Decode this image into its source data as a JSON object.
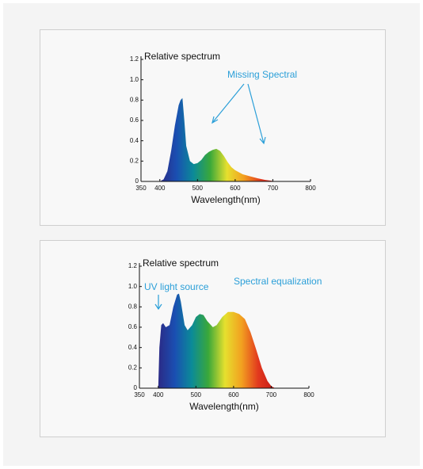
{
  "chart_data": [
    {
      "type": "area",
      "y_label": "Relative spectrum",
      "x_label": "Wavelength(nm)",
      "annotations": [
        "Missing Spectral"
      ],
      "x": [
        400,
        410,
        420,
        430,
        440,
        450,
        455,
        460,
        465,
        470,
        480,
        490,
        500,
        510,
        520,
        530,
        540,
        550,
        560,
        570,
        580,
        590,
        600,
        620,
        640,
        660,
        680,
        700,
        712
      ],
      "values": [
        0,
        0.02,
        0.1,
        0.3,
        0.55,
        0.75,
        0.8,
        0.82,
        0.6,
        0.35,
        0.2,
        0.17,
        0.18,
        0.21,
        0.26,
        0.29,
        0.31,
        0.32,
        0.3,
        0.25,
        0.19,
        0.14,
        0.11,
        0.07,
        0.05,
        0.03,
        0.015,
        0.005,
        0
      ],
      "color_stops": [
        "#2b2a86",
        "#1a4fb2",
        "#0b8a98",
        "#3aa83a",
        "#e6e02e",
        "#f2a020",
        "#e2381e",
        "#c41a18"
      ],
      "xlim": [
        350,
        800
      ],
      "xticks": [
        350,
        400,
        500,
        600,
        700,
        800
      ],
      "ylim": [
        0,
        1.2
      ],
      "yticks": [
        0,
        0.2,
        0.4,
        0.6,
        0.8,
        {
          "value": 1,
          "label": "1.0"
        },
        1.2
      ]
    },
    {
      "type": "area",
      "y_label": "Relative spectrum",
      "x_label": "Wavelength(nm)",
      "annotations": [
        "UV light source",
        "Spectral equalization"
      ],
      "x": [
        400,
        403,
        408,
        413,
        420,
        430,
        440,
        450,
        455,
        460,
        470,
        478,
        490,
        500,
        510,
        520,
        530,
        545,
        555,
        570,
        585,
        600,
        615,
        630,
        645,
        660,
        675,
        690,
        700,
        710
      ],
      "values": [
        0,
        0.4,
        0.62,
        0.64,
        0.6,
        0.62,
        0.8,
        0.92,
        0.93,
        0.85,
        0.62,
        0.57,
        0.62,
        0.7,
        0.73,
        0.72,
        0.66,
        0.6,
        0.62,
        0.7,
        0.75,
        0.75,
        0.73,
        0.68,
        0.55,
        0.38,
        0.2,
        0.07,
        0.02,
        0
      ],
      "color_stops": [
        "#2b2a86",
        "#1a4fb2",
        "#0b8a98",
        "#3aa83a",
        "#e6e02e",
        "#f2a020",
        "#e2381e",
        "#c41a18"
      ],
      "xlim": [
        350,
        800
      ],
      "xticks": [
        350,
        400,
        500,
        600,
        700,
        800
      ],
      "ylim": [
        0,
        1.2
      ],
      "yticks": [
        0,
        0.2,
        0.4,
        0.6,
        0.8,
        {
          "value": 1,
          "label": "1.0"
        },
        1.2
      ]
    }
  ]
}
